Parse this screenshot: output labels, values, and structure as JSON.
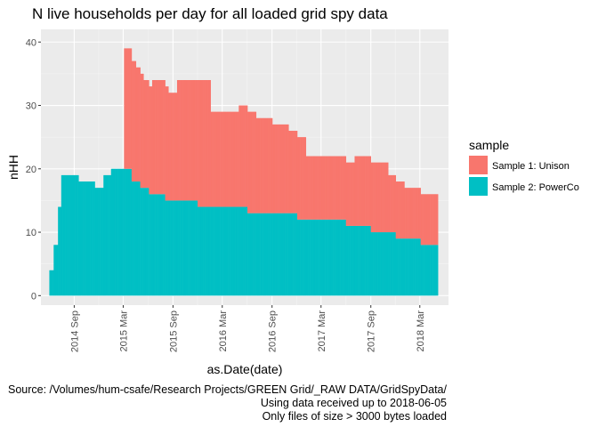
{
  "chart_data": {
    "type": "bar",
    "stacked": true,
    "title": "N live households per day for all loaded grid spy data",
    "xlabel": "as.Date(date)",
    "ylabel": "nHH",
    "ylim": [
      -1.5,
      42
    ],
    "y_ticks": [
      0,
      10,
      20,
      30,
      40
    ],
    "x_ticks": [
      "2014 Sep",
      "2015 Mar",
      "2015 Sep",
      "2016 Mar",
      "2016 Sep",
      "2017 Mar",
      "2017 Sep",
      "2018 Mar"
    ],
    "grid": true,
    "legend": {
      "title": "sample",
      "position": "right"
    },
    "series": [
      {
        "name": "Sample 1: Unison",
        "color": "#F8766D",
        "points": [
          [
            "2015-02-15",
            0
          ],
          [
            "2015-03-01",
            19
          ],
          [
            "2015-03-20",
            19
          ],
          [
            "2015-04-15",
            18
          ],
          [
            "2015-05-15",
            17
          ],
          [
            "2015-06-15",
            18
          ],
          [
            "2015-07-15",
            18
          ],
          [
            "2015-08-15",
            17
          ],
          [
            "2015-09-15",
            19
          ],
          [
            "2015-10-15",
            19
          ],
          [
            "2015-12-01",
            20
          ],
          [
            "2016-01-15",
            15
          ],
          [
            "2016-03-01",
            15
          ],
          [
            "2016-05-01",
            16
          ],
          [
            "2016-07-01",
            15
          ],
          [
            "2016-09-01",
            14
          ],
          [
            "2016-11-01",
            13
          ],
          [
            "2017-01-01",
            10
          ],
          [
            "2017-03-01",
            10
          ],
          [
            "2017-05-01",
            10
          ],
          [
            "2017-07-01",
            11
          ],
          [
            "2017-09-01",
            11
          ],
          [
            "2017-11-01",
            9
          ],
          [
            "2018-01-01",
            8
          ],
          [
            "2018-03-01",
            8
          ],
          [
            "2018-05-05",
            8
          ]
        ]
      },
      {
        "name": "Sample 2: PowerCo",
        "color": "#00BFC4",
        "points": [
          [
            "2014-06-01",
            4
          ],
          [
            "2014-06-15",
            8
          ],
          [
            "2014-07-01",
            14
          ],
          [
            "2014-07-15",
            19
          ],
          [
            "2014-08-15",
            19
          ],
          [
            "2014-09-15",
            18
          ],
          [
            "2014-10-15",
            18
          ],
          [
            "2014-11-15",
            17
          ],
          [
            "2014-12-15",
            19
          ],
          [
            "2015-01-15",
            20
          ],
          [
            "2015-02-15",
            20
          ],
          [
            "2015-03-01",
            20
          ],
          [
            "2015-04-01",
            18
          ],
          [
            "2015-05-01",
            17
          ],
          [
            "2015-06-01",
            16
          ],
          [
            "2015-08-01",
            15
          ],
          [
            "2015-10-01",
            15
          ],
          [
            "2015-12-01",
            14
          ],
          [
            "2016-02-01",
            14
          ],
          [
            "2016-04-01",
            14
          ],
          [
            "2016-06-01",
            13
          ],
          [
            "2016-09-01",
            13
          ],
          [
            "2016-12-01",
            12
          ],
          [
            "2017-03-01",
            12
          ],
          [
            "2017-06-01",
            11
          ],
          [
            "2017-09-01",
            10
          ],
          [
            "2017-12-01",
            9
          ],
          [
            "2018-03-01",
            8
          ],
          [
            "2018-05-05",
            8
          ]
        ]
      }
    ],
    "x_range": [
      "2014-05-01",
      "2018-06-15"
    ]
  },
  "caption": {
    "line1": "Source: /Volumes/hum-csafe/Research Projects/GREEN Grid/_RAW DATA/GridSpyData/",
    "line2": "Using data received up to 2018-06-05",
    "line3": "Only files of size > 3000 bytes loaded"
  }
}
